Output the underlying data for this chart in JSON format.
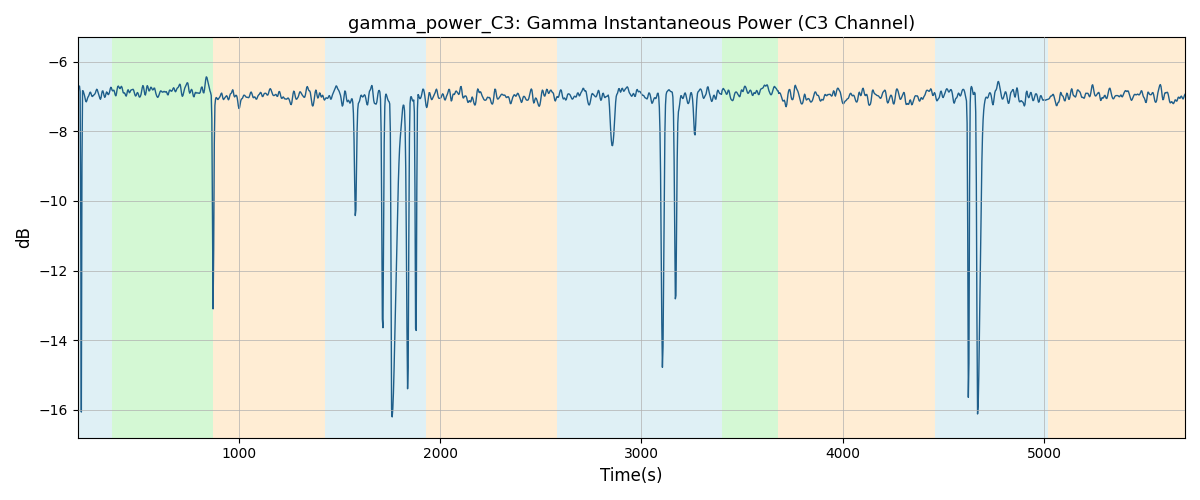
{
  "title": "gamma_power_C3: Gamma Instantaneous Power (C3 Channel)",
  "xlabel": "Time(s)",
  "ylabel": "dB",
  "xlim": [
    200,
    5700
  ],
  "ylim": [
    -16.8,
    -5.3
  ],
  "yticks": [
    -16,
    -14,
    -12,
    -10,
    -8,
    -6
  ],
  "line_color": "#1f5f8b",
  "line_width": 1.0,
  "background_color": "#ffffff",
  "grid_color": "#b0b0b0",
  "bands": [
    {
      "xmin": 200,
      "xmax": 370,
      "color": "#add8e6",
      "alpha": 0.38
    },
    {
      "xmin": 370,
      "xmax": 870,
      "color": "#90ee90",
      "alpha": 0.38
    },
    {
      "xmin": 870,
      "xmax": 1430,
      "color": "#ffd59a",
      "alpha": 0.42
    },
    {
      "xmin": 1430,
      "xmax": 1930,
      "color": "#add8e6",
      "alpha": 0.38
    },
    {
      "xmin": 1930,
      "xmax": 2580,
      "color": "#ffd59a",
      "alpha": 0.42
    },
    {
      "xmin": 2580,
      "xmax": 3060,
      "color": "#add8e6",
      "alpha": 0.38
    },
    {
      "xmin": 3060,
      "xmax": 3400,
      "color": "#add8e6",
      "alpha": 0.38
    },
    {
      "xmin": 3400,
      "xmax": 3680,
      "color": "#90ee90",
      "alpha": 0.38
    },
    {
      "xmin": 3680,
      "xmax": 4460,
      "color": "#ffd59a",
      "alpha": 0.42
    },
    {
      "xmin": 4460,
      "xmax": 5020,
      "color": "#add8e6",
      "alpha": 0.38
    },
    {
      "xmin": 5020,
      "xmax": 5700,
      "color": "#ffd59a",
      "alpha": 0.42
    }
  ],
  "figsize": [
    12.0,
    5.0
  ],
  "dpi": 100,
  "seed": 42,
  "n_points": 1800,
  "x_start": 200,
  "x_end": 5700,
  "base_level": -7.0,
  "noise_std": 0.28
}
